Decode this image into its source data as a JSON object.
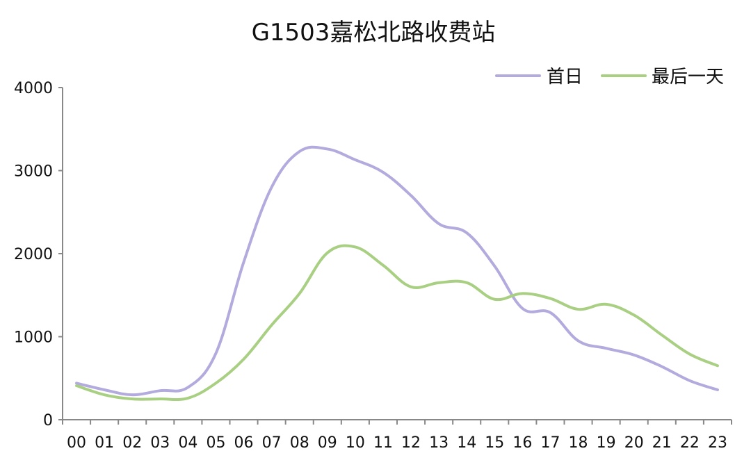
{
  "chart_data": {
    "type": "line",
    "title": "G1503嘉松北路收费站",
    "xlabel": "",
    "ylabel": "",
    "categories": [
      "00",
      "01",
      "02",
      "03",
      "04",
      "05",
      "06",
      "07",
      "08",
      "09",
      "10",
      "11",
      "12",
      "13",
      "14",
      "15",
      "16",
      "17",
      "18",
      "19",
      "20",
      "21",
      "22",
      "23"
    ],
    "ylim": [
      0,
      4000
    ],
    "yticks": [
      "0",
      "1000",
      "2000",
      "3000",
      "4000"
    ],
    "grid": false,
    "legend_position": "top-right",
    "series": [
      {
        "name": "首日",
        "color": "#b3aadd",
        "values": [
          440,
          360,
          300,
          350,
          390,
          800,
          1900,
          2800,
          3230,
          3260,
          3130,
          2980,
          2700,
          2360,
          2250,
          1850,
          1340,
          1290,
          950,
          860,
          780,
          640,
          470,
          360
        ]
      },
      {
        "name": "最后一天",
        "color": "#a8cf82",
        "values": [
          410,
          300,
          250,
          250,
          260,
          440,
          730,
          1140,
          1520,
          2010,
          2080,
          1860,
          1600,
          1650,
          1650,
          1450,
          1520,
          1460,
          1330,
          1390,
          1260,
          1020,
          790,
          650
        ]
      }
    ]
  }
}
